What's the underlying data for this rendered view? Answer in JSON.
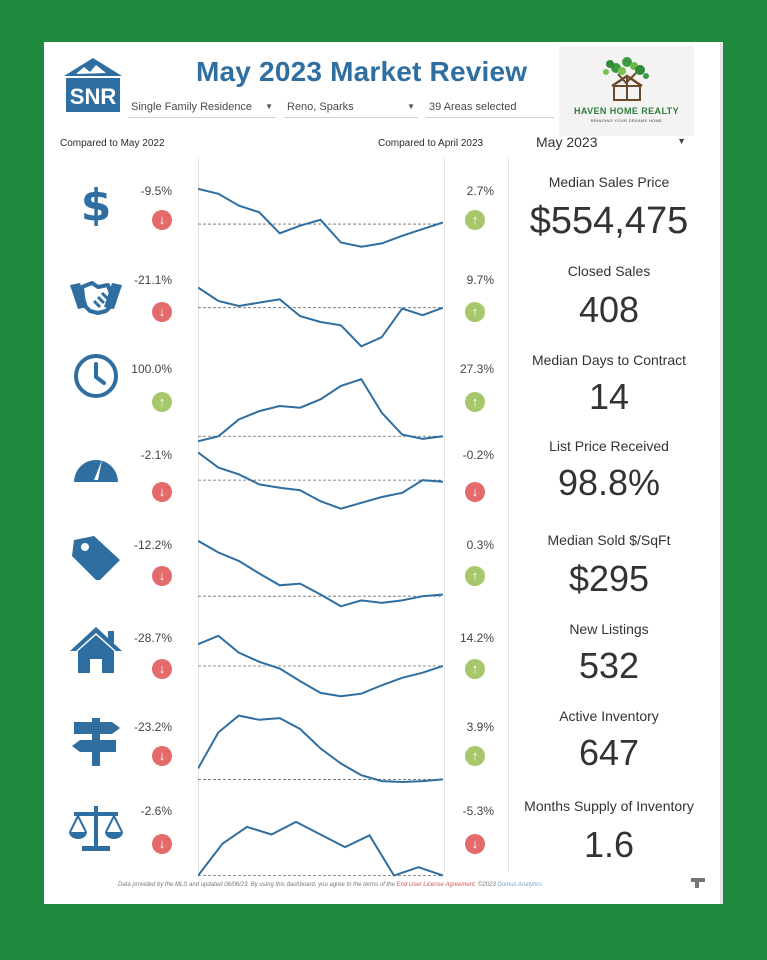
{
  "header": {
    "logo_text": "SNR",
    "title": "May 2023 Market Review",
    "filters": [
      "Single Family Residence",
      "Reno, Sparks",
      "39 Areas selected"
    ],
    "brand_name": "HAVEN HOME REALTY",
    "brand_tagline": "BRINGING YOUR DREAMS HOME"
  },
  "compare": {
    "left_label": "Compared to May 2022",
    "right_label": "Compared to April 2023",
    "month_selected": "May 2023"
  },
  "metrics": [
    {
      "label": "Median Sales Price",
      "value": "$554,475",
      "yoy": "-9.5%",
      "yoy_dir": "down",
      "mom": "2.7%",
      "mom_dir": "up",
      "icon": "dollar-icon",
      "series": [
        0.86,
        0.8,
        0.66,
        0.58,
        0.33,
        0.42,
        0.49,
        0.22,
        0.17,
        0.21,
        0.3,
        0.38,
        0.46
      ],
      "baseline": 0.44
    },
    {
      "label": "Closed Sales",
      "value": "408",
      "yoy": "-21.1%",
      "yoy_dir": "down",
      "mom": "9.7%",
      "mom_dir": "up",
      "icon": "handshake-icon",
      "series": [
        0.72,
        0.56,
        0.5,
        0.54,
        0.58,
        0.38,
        0.31,
        0.27,
        0.02,
        0.13,
        0.47,
        0.39,
        0.48
      ],
      "baseline": 0.48
    },
    {
      "label": "Median Days to Contract",
      "value": "14",
      "yoy": "100.0%",
      "yoy_dir": "up",
      "mom": "27.3%",
      "mom_dir": "up",
      "icon": "clock-icon",
      "series": [
        0.02,
        0.08,
        0.28,
        0.38,
        0.44,
        0.42,
        0.52,
        0.68,
        0.76,
        0.36,
        0.1,
        0.05,
        0.08
      ],
      "baseline": 0.08
    },
    {
      "label": "List Price Received",
      "value": "98.8%",
      "yoy": "-2.1%",
      "yoy_dir": "down",
      "mom": "-0.2%",
      "mom_dir": "down",
      "icon": "speedometer-icon",
      "series": [
        0.84,
        0.66,
        0.58,
        0.46,
        0.42,
        0.39,
        0.26,
        0.17,
        0.24,
        0.31,
        0.36,
        0.51,
        0.49
      ],
      "baseline": 0.51
    },
    {
      "label": "Median Sold $/SqFt",
      "value": "$295",
      "yoy": "-12.2%",
      "yoy_dir": "down",
      "mom": "0.3%",
      "mom_dir": "up",
      "icon": "price-tag-icon",
      "series": [
        0.86,
        0.72,
        0.62,
        0.47,
        0.33,
        0.35,
        0.22,
        0.08,
        0.15,
        0.12,
        0.15,
        0.2,
        0.22
      ],
      "baseline": 0.2
    },
    {
      "label": "New Listings",
      "value": "532",
      "yoy": "-28.7%",
      "yoy_dir": "down",
      "mom": "14.2%",
      "mom_dir": "up",
      "icon": "house-icon",
      "series": [
        0.76,
        0.86,
        0.66,
        0.55,
        0.47,
        0.32,
        0.18,
        0.14,
        0.17,
        0.27,
        0.36,
        0.42,
        0.5
      ],
      "baseline": 0.5
    },
    {
      "label": "Active Inventory",
      "value": "647",
      "yoy": "-23.2%",
      "yoy_dir": "down",
      "mom": "3.9%",
      "mom_dir": "up",
      "icon": "signpost-icon",
      "series": [
        0.22,
        0.65,
        0.85,
        0.8,
        0.82,
        0.69,
        0.46,
        0.28,
        0.14,
        0.07,
        0.06,
        0.07,
        0.09
      ],
      "baseline": 0.09
    },
    {
      "label": "Months Supply of Inventory",
      "value": "1.6",
      "yoy": "-2.6%",
      "yoy_dir": "down",
      "mom": "-5.3%",
      "mom_dir": "down",
      "icon": "scale-icon",
      "series": [
        0.04,
        0.42,
        0.62,
        0.53,
        0.68,
        0.53,
        0.38,
        0.52,
        0.04,
        0.14,
        0.04
      ],
      "baseline": 0.04
    }
  ],
  "footer": {
    "text": "Data provided by the MLS and updated 06/06/23.  By using this dashboard, you agree to the terms of the",
    "link": "End User License Agreement.",
    "copyright": "©2023",
    "company": "Domus Analytics"
  },
  "colors": {
    "accent": "#2f6ea0",
    "down": "#e36b6b",
    "up": "#a7c86a",
    "frame": "#1f8a3d"
  }
}
